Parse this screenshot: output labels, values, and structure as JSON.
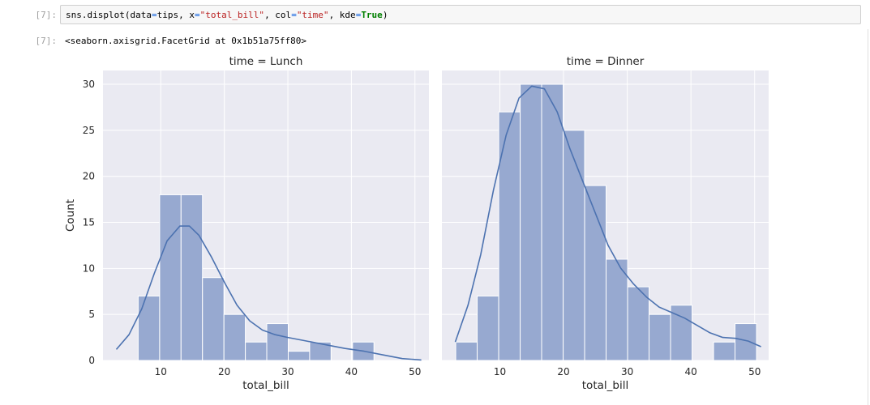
{
  "cell": {
    "in_prompt": "[7]:",
    "out_prompt": "[7]:",
    "code": {
      "part1": "sns.displot(data",
      "eq1": "=",
      "part2": "tips, x",
      "eq2": "=",
      "str1": "\"total_bill\"",
      "part3": ", col",
      "eq3": "=",
      "str2": "\"time\"",
      "part4": ", kde",
      "eq4": "=",
      "kw": "True",
      "part5": ")"
    },
    "output": "<seaborn.axisgrid.FacetGrid at 0x1b51a75ff80>"
  },
  "chart_data": {
    "type": "bar",
    "ylabel": "Count",
    "ylim": [
      0,
      31.5
    ],
    "yticks": [
      0,
      5,
      10,
      15,
      20,
      25,
      30
    ],
    "xticks": [
      10,
      20,
      30,
      40,
      50
    ],
    "xlim": [
      0.9,
      52.2
    ],
    "grid": true,
    "bar_color": "#97a9d0",
    "kde_color": "#4c72b0",
    "background": "#eaeaf2",
    "bin_edges": [
      3.07,
      6.44,
      9.82,
      13.19,
      16.56,
      19.94,
      23.31,
      26.68,
      30.06,
      33.43,
      36.8,
      40.18,
      43.55,
      46.92,
      50.3
    ],
    "panels": [
      {
        "title": "time = Lunch",
        "xlabel": "total_bill",
        "counts": [
          0,
          7,
          18,
          18,
          9,
          5,
          2,
          4,
          1,
          2,
          0,
          2,
          0,
          0
        ],
        "kde": [
          [
            3,
            1.2
          ],
          [
            5,
            2.8
          ],
          [
            7,
            5.6
          ],
          [
            9,
            9.5
          ],
          [
            11,
            13.0
          ],
          [
            13,
            14.6
          ],
          [
            14.5,
            14.6
          ],
          [
            16,
            13.6
          ],
          [
            18,
            11.2
          ],
          [
            20,
            8.5
          ],
          [
            22,
            6.0
          ],
          [
            24,
            4.3
          ],
          [
            26,
            3.3
          ],
          [
            28,
            2.8
          ],
          [
            30,
            2.5
          ],
          [
            33,
            2.1
          ],
          [
            36,
            1.7
          ],
          [
            39,
            1.3
          ],
          [
            42,
            1.0
          ],
          [
            45,
            0.6
          ],
          [
            48,
            0.2
          ],
          [
            51,
            0.05
          ]
        ]
      },
      {
        "title": "time = Dinner",
        "xlabel": "total_bill",
        "counts": [
          2,
          7,
          27,
          30,
          30,
          25,
          19,
          11,
          8,
          5,
          6,
          0,
          2,
          4
        ],
        "kde": [
          [
            3,
            2.0
          ],
          [
            5,
            6.0
          ],
          [
            7,
            11.5
          ],
          [
            9,
            18.5
          ],
          [
            11,
            24.5
          ],
          [
            13,
            28.5
          ],
          [
            15,
            29.8
          ],
          [
            17,
            29.5
          ],
          [
            19,
            27.0
          ],
          [
            21,
            23.0
          ],
          [
            23,
            19.5
          ],
          [
            25,
            16.0
          ],
          [
            27,
            12.5
          ],
          [
            29,
            10.0
          ],
          [
            31,
            8.3
          ],
          [
            33,
            6.9
          ],
          [
            35,
            5.8
          ],
          [
            37,
            5.2
          ],
          [
            39,
            4.6
          ],
          [
            41,
            3.8
          ],
          [
            43,
            3.0
          ],
          [
            45,
            2.5
          ],
          [
            47,
            2.4
          ],
          [
            49,
            2.1
          ],
          [
            51,
            1.5
          ]
        ]
      }
    ]
  }
}
